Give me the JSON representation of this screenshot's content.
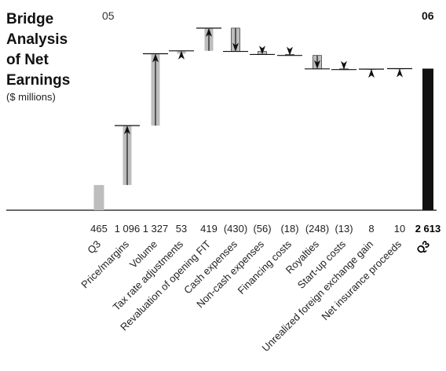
{
  "title_lines": [
    "Bridge",
    "Analysis",
    "of Net",
    "Earnings"
  ],
  "subtitle": "($ millions)",
  "year_left": "05",
  "year_right": "06",
  "colors": {
    "bar_gray": "#bdbdbd",
    "bar_black": "#111111",
    "line": "#111111"
  },
  "chart_data": {
    "type": "waterfall",
    "title": "Bridge Analysis of Net Earnings",
    "unit": "$ millions",
    "categories": [
      "Q3",
      "Price/margins",
      "Volume",
      "Tax rate adjustments",
      "Revaluation of opening FIT",
      "Cash expenses",
      "Non-cash expenses",
      "Financing costs",
      "Royalties",
      "Start-up costs",
      "Unrealized foreign exchange gain",
      "Net insurance proceeds",
      "Q3"
    ],
    "value_labels": [
      "465",
      "1 096",
      "1 327",
      "53",
      "419",
      "(430)",
      "(56)",
      "(18)",
      "(248)",
      "(13)",
      "8",
      "10",
      "2 613"
    ],
    "values": [
      465,
      1096,
      1327,
      53,
      419,
      -430,
      -56,
      -18,
      -248,
      -13,
      8,
      10,
      2613
    ],
    "kinds": [
      "total",
      "delta",
      "delta",
      "delta",
      "delta",
      "delta",
      "delta",
      "delta",
      "delta",
      "delta",
      "delta",
      "delta",
      "total"
    ],
    "bold": [
      false,
      false,
      false,
      false,
      false,
      false,
      false,
      false,
      false,
      false,
      false,
      false,
      true
    ],
    "ylim": [
      0,
      3300
    ]
  }
}
